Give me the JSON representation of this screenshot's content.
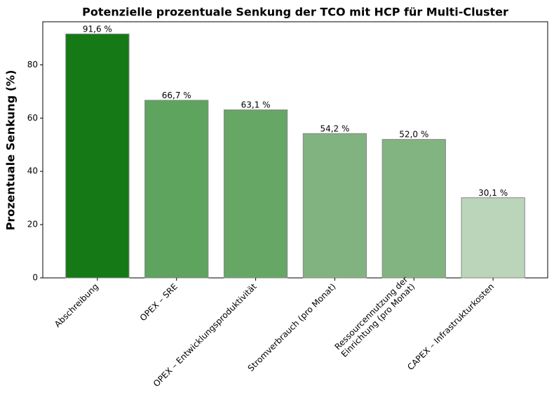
{
  "chart_data": {
    "type": "bar",
    "title": "Potenzielle prozentuale Senkung der TCO mit HCP für Multi-Cluster",
    "y_label": "Prozentuale Senkung (%)",
    "categories": [
      "Abschreibung",
      "OPEX – SRE",
      "OPEX – Entwicklungsproduktivität",
      "Stromverbrauch (pro Monat)",
      "Ressourcennutzung der\nEinrichtung (pro Monat)",
      "CAPEX – Infrastrukturkosten"
    ],
    "values": [
      91.6,
      66.7,
      63.1,
      54.2,
      52.0,
      30.1
    ],
    "value_labels": [
      "91,6 %",
      "66,7 %",
      "63,1 %",
      "54,2 %",
      "52,0 %",
      "30,1 %"
    ],
    "colors": [
      "#157a15",
      "#5ea35e",
      "#66a766",
      "#80b380",
      "#82b482",
      "#bad5ba"
    ],
    "ylim": [
      0,
      96.18
    ],
    "yticks": [
      0,
      20,
      40,
      60,
      80
    ],
    "grid": false
  }
}
